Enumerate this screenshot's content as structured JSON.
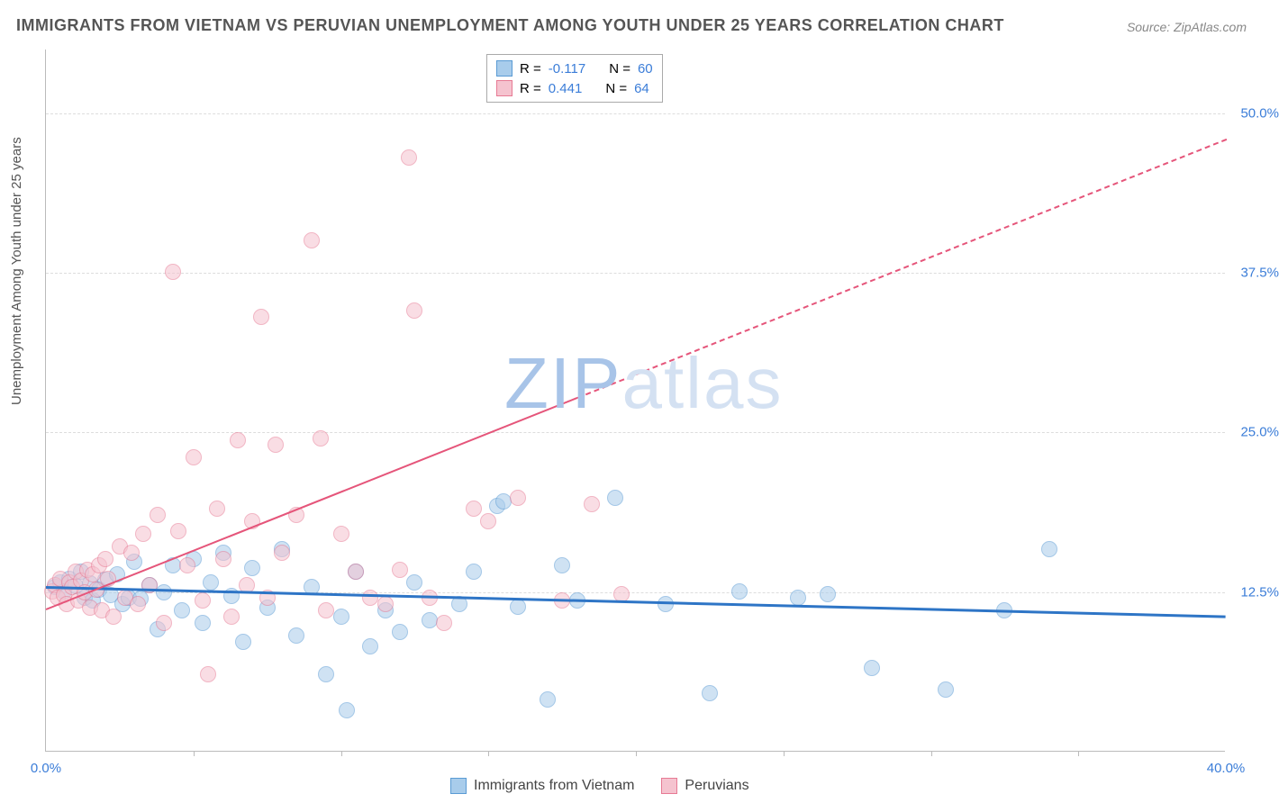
{
  "title": "IMMIGRANTS FROM VIETNAM VS PERUVIAN UNEMPLOYMENT AMONG YOUTH UNDER 25 YEARS CORRELATION CHART",
  "source_label": "Source: ",
  "source_value": "ZipAtlas.com",
  "ylabel": "Unemployment Among Youth under 25 years",
  "watermark_dark": "ZIP",
  "watermark_light": "atlas",
  "watermark_color_dark": "#a8c4e8",
  "watermark_color_light": "#d4e1f2",
  "chart": {
    "type": "scatter-correlation",
    "background_color": "#ffffff",
    "grid_color": "#dddddd",
    "axis_color": "#bbbbbb",
    "xlim": [
      0,
      40
    ],
    "ylim": [
      0,
      55
    ],
    "xtick_values": [
      0,
      40
    ],
    "xtick_labels": [
      "0.0%",
      "40.0%"
    ],
    "xtick_color": "#3b7dd8",
    "ytick_values": [
      12.5,
      25.0,
      37.5,
      50.0
    ],
    "ytick_labels": [
      "12.5%",
      "25.0%",
      "37.5%",
      "50.0%"
    ],
    "ytick_color": "#3b7dd8",
    "minor_xticks": [
      5,
      10,
      15,
      20,
      25,
      30,
      35
    ],
    "point_radius": 9,
    "point_opacity": 0.55,
    "series": [
      {
        "name": "Immigrants from Vietnam",
        "fill": "#a8cceb",
        "stroke": "#5a9bd4",
        "trend_color": "#2e75c6",
        "trend_width": 3,
        "trend_dash_after_x": null,
        "trend_y0": 13.0,
        "trend_y40": 10.7,
        "R": "-0.117",
        "N": "60",
        "points": [
          [
            0.3,
            12.8
          ],
          [
            0.5,
            13.2
          ],
          [
            0.6,
            12.5
          ],
          [
            0.8,
            13.5
          ],
          [
            1.0,
            12.9
          ],
          [
            1.2,
            14.0
          ],
          [
            1.3,
            12.0
          ],
          [
            1.5,
            13.1
          ],
          [
            1.6,
            11.8
          ],
          [
            1.8,
            12.6
          ],
          [
            2.0,
            13.4
          ],
          [
            2.2,
            12.2
          ],
          [
            2.4,
            13.8
          ],
          [
            2.6,
            11.5
          ],
          [
            2.8,
            12.0
          ],
          [
            3.0,
            14.8
          ],
          [
            3.2,
            11.9
          ],
          [
            3.5,
            13.0
          ],
          [
            3.8,
            9.5
          ],
          [
            4.0,
            12.4
          ],
          [
            4.3,
            14.5
          ],
          [
            4.6,
            11.0
          ],
          [
            5.0,
            15.0
          ],
          [
            5.3,
            10.0
          ],
          [
            5.6,
            13.2
          ],
          [
            6.0,
            15.5
          ],
          [
            6.3,
            12.1
          ],
          [
            6.7,
            8.5
          ],
          [
            7.0,
            14.3
          ],
          [
            7.5,
            11.2
          ],
          [
            8.0,
            15.8
          ],
          [
            8.5,
            9.0
          ],
          [
            9.0,
            12.8
          ],
          [
            9.5,
            6.0
          ],
          [
            10.0,
            10.5
          ],
          [
            10.2,
            3.2
          ],
          [
            10.5,
            14.0
          ],
          [
            11.0,
            8.2
          ],
          [
            11.5,
            11.0
          ],
          [
            12.0,
            9.3
          ],
          [
            12.5,
            13.2
          ],
          [
            13.0,
            10.2
          ],
          [
            14.0,
            11.5
          ],
          [
            14.5,
            14.0
          ],
          [
            15.3,
            19.2
          ],
          [
            15.5,
            19.5
          ],
          [
            16.0,
            11.3
          ],
          [
            17.0,
            4.0
          ],
          [
            17.5,
            14.5
          ],
          [
            18.0,
            11.8
          ],
          [
            19.3,
            19.8
          ],
          [
            21.0,
            11.5
          ],
          [
            22.5,
            4.5
          ],
          [
            23.5,
            12.5
          ],
          [
            25.5,
            12.0
          ],
          [
            26.5,
            12.3
          ],
          [
            28.0,
            6.5
          ],
          [
            30.5,
            4.8
          ],
          [
            32.5,
            11.0
          ],
          [
            34.0,
            15.8
          ]
        ]
      },
      {
        "name": "Peruvians",
        "fill": "#f5c3cf",
        "stroke": "#e77a94",
        "trend_color": "#e5557a",
        "trend_width": 2,
        "trend_dash_after_x": 18,
        "trend_y0": 11.2,
        "trend_y40": 48.0,
        "R": "0.441",
        "N": "64",
        "points": [
          [
            0.2,
            12.5
          ],
          [
            0.3,
            13.0
          ],
          [
            0.4,
            12.0
          ],
          [
            0.5,
            13.5
          ],
          [
            0.6,
            12.2
          ],
          [
            0.7,
            11.5
          ],
          [
            0.8,
            13.2
          ],
          [
            0.9,
            12.8
          ],
          [
            1.0,
            14.0
          ],
          [
            1.1,
            11.8
          ],
          [
            1.2,
            13.3
          ],
          [
            1.3,
            12.4
          ],
          [
            1.4,
            14.2
          ],
          [
            1.5,
            11.2
          ],
          [
            1.6,
            13.8
          ],
          [
            1.7,
            12.6
          ],
          [
            1.8,
            14.5
          ],
          [
            1.9,
            11.0
          ],
          [
            2.0,
            15.0
          ],
          [
            2.1,
            13.5
          ],
          [
            2.3,
            10.5
          ],
          [
            2.5,
            16.0
          ],
          [
            2.7,
            12.0
          ],
          [
            2.9,
            15.5
          ],
          [
            3.1,
            11.5
          ],
          [
            3.3,
            17.0
          ],
          [
            3.5,
            13.0
          ],
          [
            3.8,
            18.5
          ],
          [
            4.0,
            10.0
          ],
          [
            4.3,
            37.5
          ],
          [
            4.5,
            17.2
          ],
          [
            4.8,
            14.5
          ],
          [
            5.0,
            23.0
          ],
          [
            5.3,
            11.8
          ],
          [
            5.5,
            6.0
          ],
          [
            5.8,
            19.0
          ],
          [
            6.0,
            15.0
          ],
          [
            6.3,
            10.5
          ],
          [
            6.5,
            24.3
          ],
          [
            6.8,
            13.0
          ],
          [
            7.0,
            18.0
          ],
          [
            7.3,
            34.0
          ],
          [
            7.5,
            12.0
          ],
          [
            7.8,
            24.0
          ],
          [
            8.0,
            15.5
          ],
          [
            8.5,
            18.5
          ],
          [
            9.0,
            40.0
          ],
          [
            9.3,
            24.5
          ],
          [
            9.5,
            11.0
          ],
          [
            10.0,
            17.0
          ],
          [
            10.5,
            14.0
          ],
          [
            11.0,
            12.0
          ],
          [
            11.5,
            11.5
          ],
          [
            12.0,
            14.2
          ],
          [
            12.3,
            46.5
          ],
          [
            12.5,
            34.5
          ],
          [
            13.0,
            12.0
          ],
          [
            13.5,
            10.0
          ],
          [
            14.5,
            19.0
          ],
          [
            15.0,
            18.0
          ],
          [
            16.0,
            19.8
          ],
          [
            17.5,
            11.8
          ],
          [
            18.5,
            19.3
          ],
          [
            19.5,
            12.3
          ]
        ]
      }
    ]
  },
  "legend_top": {
    "R_label": "R =",
    "N_label": "N ="
  },
  "legend_bottom": [
    {
      "label": "Immigrants from Vietnam"
    },
    {
      "label": "Peruvians"
    }
  ]
}
